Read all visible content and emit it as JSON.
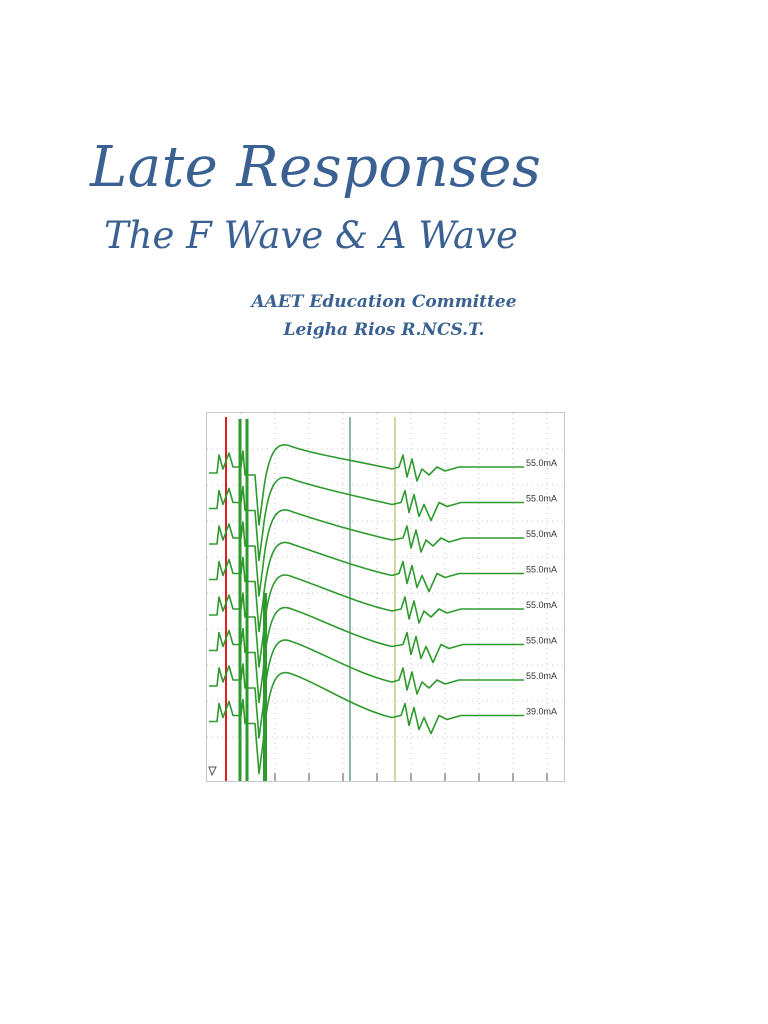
{
  "document": {
    "title": "Late Responses",
    "subtitle": "The F Wave & A Wave",
    "committee": "AAET Education Committee",
    "author": "Leigha Rios R.NCS.T."
  },
  "colors": {
    "text": "#3a6192",
    "trace": "#2e9a2e",
    "stimulus_marker": "#e02020",
    "cursor_1": "#3c8a6a",
    "cursor_2": "#cfc98a",
    "grid": "#9a9a9a"
  },
  "figure": {
    "description_type": "nerve-conduction F-wave raster traces",
    "trace_labels": [
      "55.0mA",
      "55.0mA",
      "55.0mA",
      "55.0mA",
      "55.0mA",
      "55.0mA",
      "55.0mA",
      "39.0mA"
    ]
  }
}
